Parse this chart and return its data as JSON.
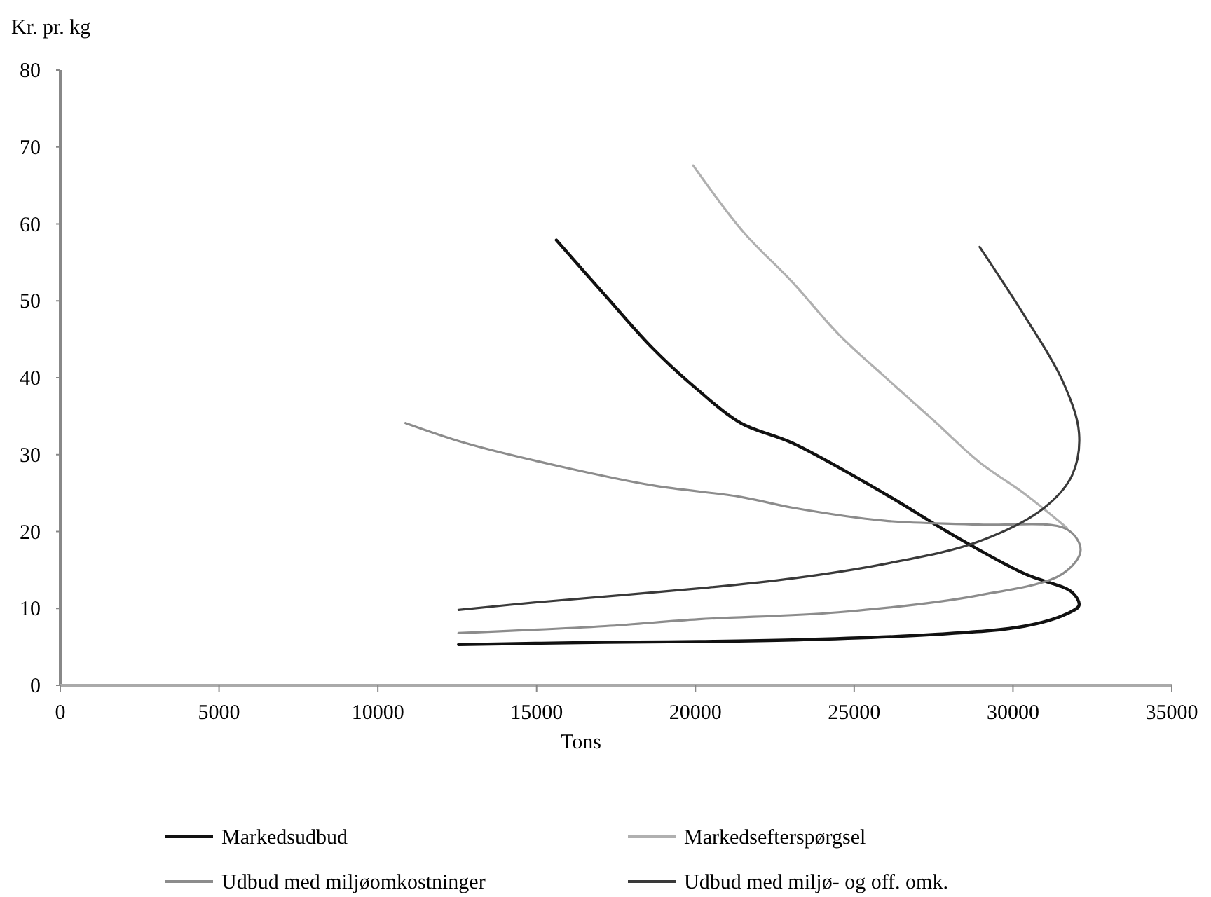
{
  "chart_data": {
    "type": "line",
    "xlabel": "Tons",
    "ylabel": "Kr. pr. kg",
    "xlim": [
      0,
      35000
    ],
    "ylim": [
      0,
      80
    ],
    "xticks": [
      0,
      5000,
      10000,
      15000,
      20000,
      25000,
      30000,
      35000
    ],
    "yticks": [
      0,
      10,
      20,
      30,
      40,
      50,
      60,
      70,
      80
    ],
    "grid": false,
    "legend": "bottom",
    "marker": "none",
    "line_style": "solid",
    "series": [
      {
        "name": "Markedsudbud",
        "color": "#111111",
        "x": [
          12540,
          17160,
          20110,
          23060,
          27460,
          30370,
          31690,
          32080,
          31860,
          30370,
          28170,
          25970,
          23060,
          21430,
          20110,
          18660,
          17160,
          15620
        ],
        "values": [
          5.3,
          5.6,
          5.7,
          5.9,
          6.6,
          7.7,
          9.3,
          10.4,
          12.1,
          14.5,
          19.4,
          24.9,
          31.5,
          34.1,
          38.3,
          43.8,
          50.7,
          57.9
        ]
      },
      {
        "name": "Markedsefterspørgsel",
        "color": "#b0b0b0",
        "x": [
          19930,
          21500,
          23060,
          24520,
          25970,
          27460,
          28920,
          30370,
          31690
        ],
        "values": [
          67.6,
          59,
          52.4,
          45.6,
          40.1,
          34.6,
          29.1,
          24.9,
          20.5
        ]
      },
      {
        "name": "Udbud med miljøomkostninger",
        "color": "#8c8c8c",
        "x": [
          12540,
          17160,
          20110,
          24500,
          28920,
          31560,
          32130,
          31690,
          28920,
          25970,
          23060,
          21430,
          18660,
          15710,
          12760,
          10870
        ],
        "values": [
          6.8,
          7.7,
          8.6,
          9.5,
          11.7,
          14.5,
          17.6,
          20.3,
          20.9,
          21.4,
          23.1,
          24.5,
          26.0,
          28.5,
          31.5,
          34.1
        ]
      },
      {
        "name": "Udbud med miljø- og off. omk.",
        "color": "#3a3a3a",
        "x": [
          12540,
          15000,
          20110,
          23060,
          25970,
          28920,
          30990,
          31860,
          32080,
          31560,
          30370,
          28950
        ],
        "values": [
          9.8,
          10.8,
          12.6,
          13.9,
          15.8,
          18.7,
          23.1,
          27.3,
          32.8,
          39.6,
          48,
          57
        ]
      }
    ]
  }
}
